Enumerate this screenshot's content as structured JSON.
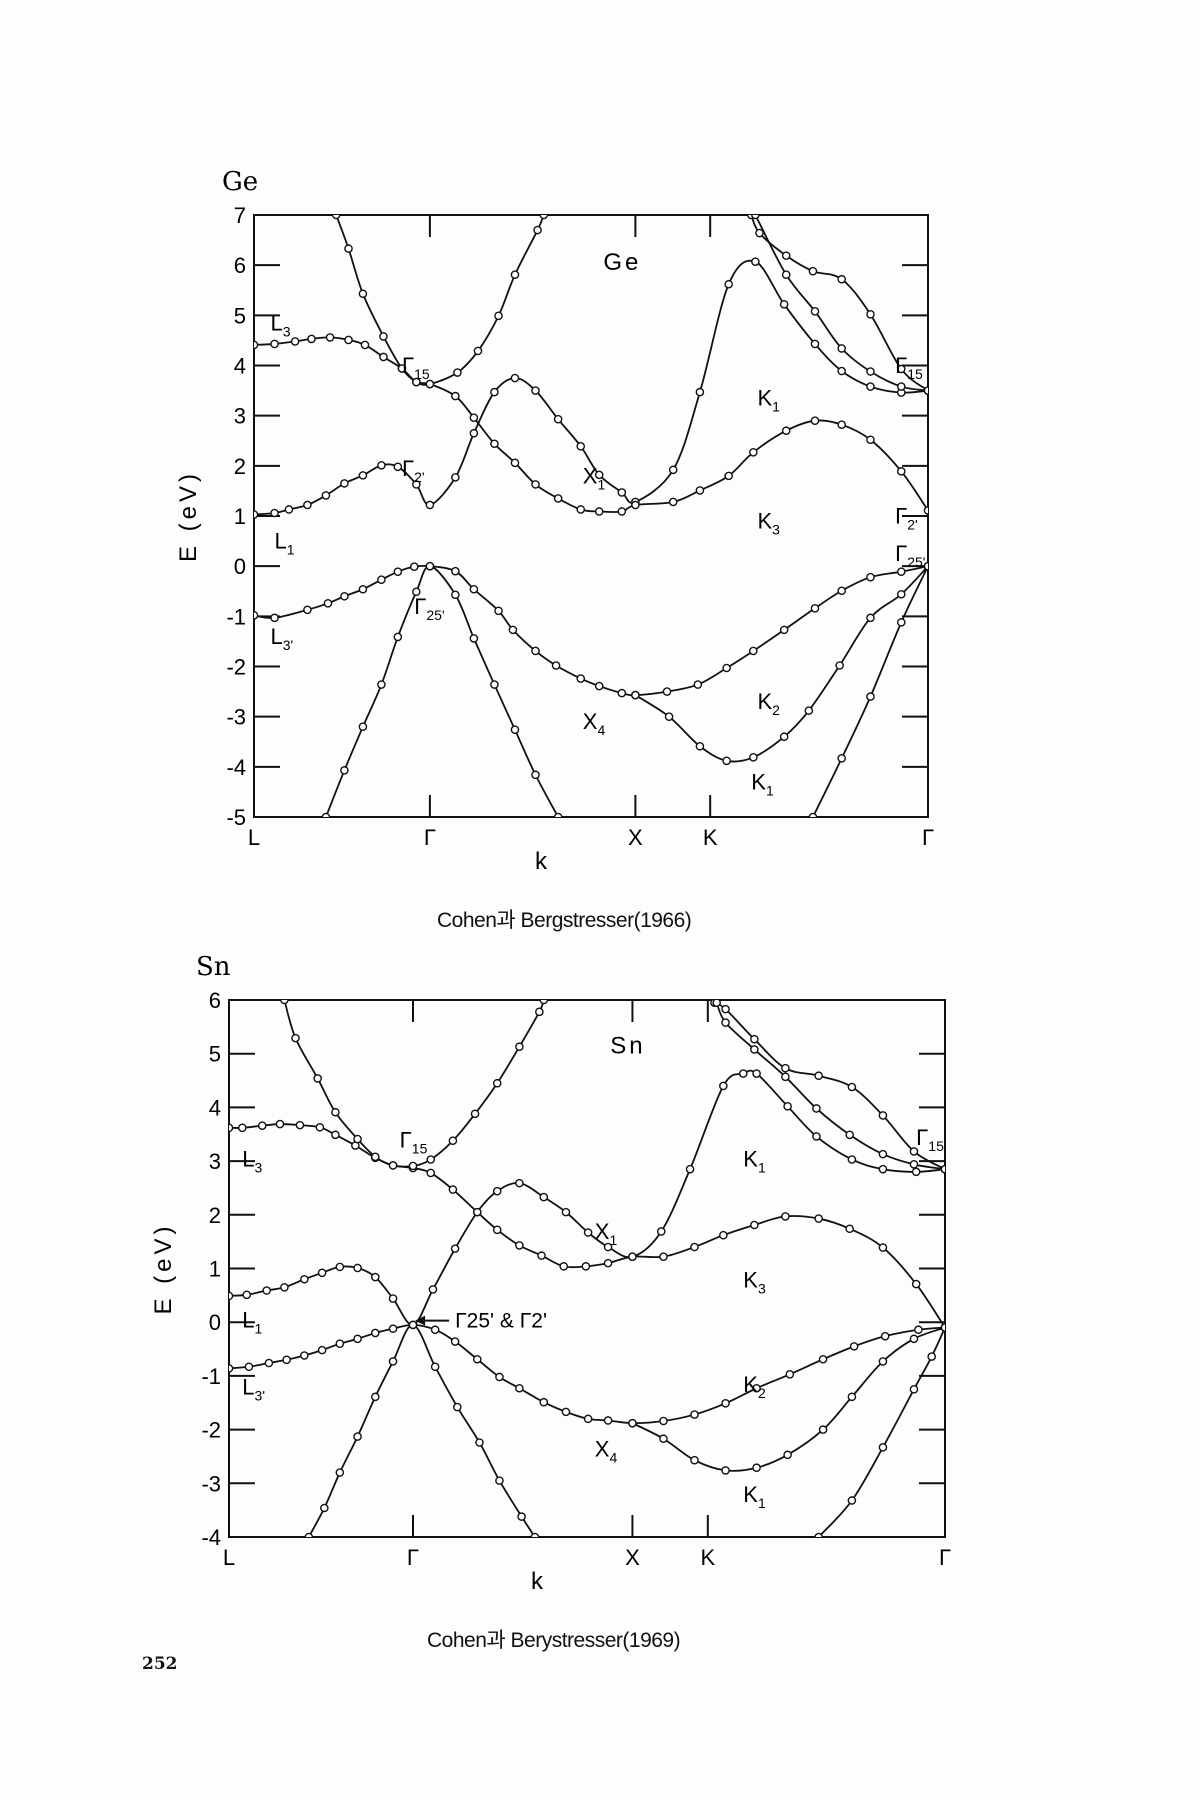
{
  "page_number": "252",
  "chart_data": [
    {
      "type": "line",
      "corner_label": "Ge",
      "inner_title": "Ge",
      "ylabel": "E (eV)",
      "xlabel": "k",
      "ylim": [
        -5,
        7
      ],
      "yticks": [
        -5,
        -4,
        -3,
        -2,
        -1,
        0,
        1,
        2,
        3,
        4,
        5,
        6,
        7
      ],
      "xlim": [
        0,
        3.28
      ],
      "xticks": [
        {
          "k": 0,
          "label": "L"
        },
        {
          "k": 0.856,
          "label": "Γ"
        },
        {
          "k": 1.856,
          "label": "X"
        },
        {
          "k": 2.22,
          "label": "K"
        },
        {
          "k": 3.28,
          "label": "Γ"
        }
      ],
      "caption": "Cohen과 Bergstresser(1966)",
      "annotations": [
        {
          "k": 0.08,
          "E": 4.7,
          "text": "L",
          "sub": "3"
        },
        {
          "k": 0.1,
          "E": 0.35,
          "text": "L",
          "sub": "1"
        },
        {
          "k": 0.08,
          "E": -1.55,
          "text": "L",
          "sub": "3'"
        },
        {
          "k": 0.72,
          "E": 3.85,
          "text": "Γ",
          "sub": "15"
        },
        {
          "k": 0.72,
          "E": 1.8,
          "text": "Γ",
          "sub": "2'"
        },
        {
          "k": 0.78,
          "E": -0.95,
          "text": "Γ",
          "sub": "25'"
        },
        {
          "k": 1.6,
          "E": 1.65,
          "text": "X",
          "sub": "1"
        },
        {
          "k": 1.6,
          "E": -3.25,
          "text": "X",
          "sub": "4"
        },
        {
          "k": 2.45,
          "E": 3.2,
          "text": "K",
          "sub": "1"
        },
        {
          "k": 2.45,
          "E": 0.75,
          "text": "K",
          "sub": "3"
        },
        {
          "k": 2.45,
          "E": -2.85,
          "text": "K",
          "sub": "2"
        },
        {
          "k": 2.42,
          "E": -4.45,
          "text": "K",
          "sub": "1"
        },
        {
          "k": 3.12,
          "E": 3.85,
          "text": "Γ",
          "sub": "15"
        },
        {
          "k": 3.12,
          "E": 0.85,
          "text": "Γ",
          "sub": "2'"
        },
        {
          "k": 3.12,
          "E": 0.1,
          "text": "Γ",
          "sub": "25'"
        }
      ],
      "series": [
        {
          "name": "valence-1",
          "k": [
            0,
            0.1,
            0.26,
            0.36,
            0.44,
            0.53,
            0.62,
            0.7,
            0.78,
            0.856,
            0.98,
            1.07,
            1.19,
            1.26,
            1.37,
            1.47,
            1.59,
            1.68,
            1.79,
            1.856,
            2.01,
            2.16,
            2.3,
            2.43,
            2.58,
            2.73,
            2.86,
            3.0,
            3.15,
            3.28
          ],
          "E": [
            -0.98,
            -1.03,
            -0.87,
            -0.74,
            -0.6,
            -0.46,
            -0.27,
            -0.11,
            -0.01,
            0,
            -0.1,
            -0.46,
            -0.89,
            -1.27,
            -1.69,
            -1.98,
            -2.24,
            -2.39,
            -2.53,
            -2.57,
            -2.5,
            -2.36,
            -2.03,
            -1.69,
            -1.27,
            -0.84,
            -0.49,
            -0.22,
            -0.11,
            0
          ]
        },
        {
          "name": "valence-2",
          "k": [
            0.35,
            0.44,
            0.53,
            0.62,
            0.7,
            0.79,
            0.856,
            0.98,
            1.07,
            1.17,
            1.27,
            1.37,
            1.48
          ],
          "E": [
            -5,
            -4.07,
            -3.2,
            -2.36,
            -1.41,
            -0.51,
            0,
            -0.57,
            -1.44,
            -2.36,
            -3.26,
            -4.16,
            -5
          ]
        },
        {
          "name": "valence-3",
          "k": [
            1.856,
            2.02,
            2.17,
            2.3,
            2.43,
            2.58,
            2.7,
            2.85,
            3.0,
            3.15,
            3.28
          ],
          "E": [
            -2.57,
            -3.0,
            -3.59,
            -3.88,
            -3.81,
            -3.4,
            -2.88,
            -1.98,
            -1.03,
            -0.56,
            0
          ]
        },
        {
          "name": "valence-4",
          "k": [
            2.72,
            2.86,
            3.0,
            3.15,
            3.28
          ],
          "E": [
            -5,
            -3.83,
            -2.6,
            -1.12,
            0
          ]
        },
        {
          "name": "conduction-1",
          "k": [
            0,
            0.1,
            0.17,
            0.26,
            0.35,
            0.44,
            0.53,
            0.62,
            0.7,
            0.79,
            0.856,
            0.98,
            1.07,
            1.17,
            1.27,
            1.37,
            1.48,
            1.59,
            1.68,
            1.79,
            1.856,
            2.04,
            2.17,
            2.31,
            2.44,
            2.58,
            2.73,
            2.86,
            3.0,
            3.15,
            3.28
          ],
          "E": [
            1.03,
            1.06,
            1.13,
            1.22,
            1.41,
            1.65,
            1.81,
            2.01,
            1.98,
            1.63,
            1.22,
            1.77,
            2.65,
            3.47,
            3.75,
            3.5,
            2.93,
            2.39,
            1.82,
            1.47,
            1.28,
            1.92,
            3.47,
            5.62,
            6.07,
            5.22,
            4.43,
            3.89,
            3.58,
            3.46,
            3.5
          ]
        },
        {
          "name": "conduction-2",
          "k": [
            0,
            0.1,
            0.2,
            0.28,
            0.37,
            0.46,
            0.54,
            0.63,
            0.72,
            0.79,
            0.856,
            0.98,
            1.07,
            1.17,
            1.27,
            1.37,
            1.48,
            1.59,
            1.68,
            1.79,
            1.856,
            2.04,
            2.17,
            2.31,
            2.43,
            2.59,
            2.73,
            2.86,
            3.0,
            3.15,
            3.28
          ],
          "E": [
            4.41,
            4.43,
            4.48,
            4.53,
            4.56,
            4.51,
            4.41,
            4.17,
            3.94,
            3.67,
            3.63,
            3.39,
            2.96,
            2.44,
            2.06,
            1.63,
            1.35,
            1.13,
            1.09,
            1.09,
            1.22,
            1.28,
            1.51,
            1.8,
            2.27,
            2.7,
            2.9,
            2.82,
            2.52,
            1.89,
            1.11
          ]
        },
        {
          "name": "conduction-3",
          "k": [
            0.4,
            0.46,
            0.53,
            0.63,
            0.72,
            0.79,
            0.856,
            0.99,
            1.09,
            1.19,
            1.27,
            1.38,
            1.41
          ],
          "E": [
            7,
            6.33,
            5.43,
            4.58,
            3.94,
            3.67,
            3.63,
            3.86,
            4.29,
            4.99,
            5.81,
            6.7,
            7
          ]
        },
        {
          "name": "conduction-4",
          "k": [
            2.42,
            2.46,
            2.59,
            2.72,
            2.86,
            3.0,
            3.15,
            3.28
          ],
          "E": [
            7,
            6.64,
            6.19,
            5.88,
            5.72,
            5.02,
            3.93,
            3.5
          ]
        },
        {
          "name": "conduction-5",
          "k": [
            2.44,
            2.59,
            2.73,
            2.86,
            3.0,
            3.15,
            3.28
          ],
          "E": [
            7,
            5.81,
            5.08,
            4.34,
            3.88,
            3.58,
            3.5
          ]
        }
      ]
    },
    {
      "type": "line",
      "corner_label": "Sn",
      "inner_title": "Sn",
      "ylabel": "E (eV)",
      "xlabel": "k",
      "ylim": [
        -4,
        6
      ],
      "yticks": [
        -4,
        -3,
        -2,
        -1,
        0,
        1,
        2,
        3,
        4,
        5,
        6
      ],
      "xlim": [
        0,
        3.23
      ],
      "xticks": [
        {
          "k": 0,
          "label": "L"
        },
        {
          "k": 0.83,
          "label": "Γ"
        },
        {
          "k": 1.82,
          "label": "X"
        },
        {
          "k": 2.16,
          "label": "K"
        },
        {
          "k": 3.23,
          "label": "Γ"
        }
      ],
      "caption": "Cohen과 Berystresser(1969)",
      "arrow_label": {
        "k": 1.02,
        "E": -0.1,
        "text": "Γ25' & Γ2'"
      },
      "annotations": [
        {
          "k": 0.06,
          "E": 2.9,
          "text": "L",
          "sub": "3"
        },
        {
          "k": 0.06,
          "E": -0.1,
          "text": "L",
          "sub": "1"
        },
        {
          "k": 0.06,
          "E": -1.35,
          "text": "L",
          "sub": "3'"
        },
        {
          "k": 0.77,
          "E": 3.25,
          "text": "Γ",
          "sub": "15"
        },
        {
          "k": 1.65,
          "E": 1.55,
          "text": "X",
          "sub": "1"
        },
        {
          "k": 1.65,
          "E": -2.5,
          "text": "X",
          "sub": "4"
        },
        {
          "k": 2.32,
          "E": 2.9,
          "text": "K",
          "sub": "1"
        },
        {
          "k": 2.32,
          "E": 0.65,
          "text": "K",
          "sub": "3"
        },
        {
          "k": 2.32,
          "E": -1.3,
          "text": "K",
          "sub": "2"
        },
        {
          "k": 2.32,
          "E": -3.35,
          "text": "K",
          "sub": "1"
        },
        {
          "k": 3.1,
          "E": 3.3,
          "text": "Γ",
          "sub": "15"
        }
      ],
      "series": [
        {
          "name": "valence-1",
          "k": [
            0,
            0.09,
            0.18,
            0.26,
            0.34,
            0.42,
            0.5,
            0.58,
            0.66,
            0.74,
            0.83,
            0.93,
            1.02,
            1.12,
            1.22,
            1.31,
            1.42,
            1.52,
            1.62,
            1.71,
            1.82,
            1.96,
            2.1,
            2.24,
            2.38,
            2.53,
            2.68,
            2.82,
            2.96,
            3.11,
            3.23
          ],
          "E": [
            -0.86,
            -0.83,
            -0.76,
            -0.7,
            -0.62,
            -0.52,
            -0.4,
            -0.31,
            -0.2,
            -0.12,
            -0.05,
            -0.14,
            -0.36,
            -0.69,
            -1.02,
            -1.23,
            -1.49,
            -1.67,
            -1.8,
            -1.83,
            -1.88,
            -1.84,
            -1.72,
            -1.51,
            -1.23,
            -0.97,
            -0.69,
            -0.45,
            -0.26,
            -0.14,
            -0.1
          ]
        },
        {
          "name": "valence-2",
          "k": [
            0.36,
            0.43,
            0.5,
            0.58,
            0.66,
            0.74,
            0.83,
            0.93,
            1.03,
            1.13,
            1.22,
            1.32,
            1.38
          ],
          "E": [
            -4,
            -3.46,
            -2.8,
            -2.13,
            -1.39,
            -0.73,
            -0.05,
            -0.83,
            -1.58,
            -2.24,
            -2.95,
            -3.62,
            -4
          ]
        },
        {
          "name": "valence-3",
          "k": [
            1.82,
            1.96,
            2.1,
            2.24,
            2.38,
            2.52,
            2.68,
            2.81,
            2.95,
            3.09,
            3.23
          ],
          "E": [
            -1.88,
            -2.17,
            -2.57,
            -2.76,
            -2.71,
            -2.47,
            -2.0,
            -1.39,
            -0.73,
            -0.31,
            -0.1
          ]
        },
        {
          "name": "valence-4",
          "k": [
            2.66,
            2.81,
            2.95,
            3.09,
            3.17,
            3.23
          ],
          "E": [
            -4,
            -3.32,
            -2.33,
            -1.25,
            -0.64,
            -0.1
          ]
        },
        {
          "name": "conduction-1",
          "k": [
            0,
            0.08,
            0.17,
            0.25,
            0.34,
            0.42,
            0.5,
            0.58,
            0.66,
            0.74,
            0.83,
            0.92,
            1.02,
            1.12,
            1.21,
            1.31,
            1.42,
            1.52,
            1.62,
            1.71,
            1.82,
            1.95,
            2.08,
            2.23,
            2.32,
            2.38,
            2.52,
            2.65,
            2.81,
            2.95,
            3.1,
            3.23
          ],
          "E": [
            0.49,
            0.51,
            0.59,
            0.65,
            0.8,
            0.92,
            1.03,
            1.01,
            0.84,
            0.44,
            -0.05,
            0.61,
            1.37,
            2.05,
            2.44,
            2.59,
            2.33,
            2.05,
            1.67,
            1.4,
            1.22,
            1.69,
            2.85,
            4.4,
            4.63,
            4.63,
            4.02,
            3.46,
            3.03,
            2.85,
            2.8,
            2.85
          ]
        },
        {
          "name": "conduction-2",
          "k": [
            0,
            0.06,
            0.15,
            0.23,
            0.32,
            0.41,
            0.48,
            0.57,
            0.66,
            0.74,
            0.83,
            0.91,
            1.01,
            1.12,
            1.21,
            1.31,
            1.41,
            1.51,
            1.61,
            1.71,
            1.82,
            1.96,
            2.1,
            2.23,
            2.37,
            2.51,
            2.66,
            2.8,
            2.95,
            3.1,
            3.23
          ],
          "E": [
            3.62,
            3.62,
            3.66,
            3.69,
            3.67,
            3.63,
            3.49,
            3.29,
            3.06,
            2.92,
            2.87,
            2.78,
            2.47,
            2.05,
            1.72,
            1.43,
            1.24,
            1.04,
            1.04,
            1.1,
            1.22,
            1.22,
            1.4,
            1.62,
            1.81,
            1.97,
            1.93,
            1.74,
            1.39,
            0.71,
            -0.1
          ]
        },
        {
          "name": "conduction-3",
          "k": [
            0.25,
            0.3,
            0.4,
            0.48,
            0.58,
            0.66,
            0.74,
            0.83,
            0.91,
            1.01,
            1.11,
            1.21,
            1.31,
            1.4,
            1.42
          ],
          "E": [
            6,
            5.29,
            4.54,
            3.91,
            3.41,
            3.08,
            2.92,
            2.91,
            3.03,
            3.38,
            3.88,
            4.45,
            5.13,
            5.78,
            6
          ]
        },
        {
          "name": "conduction-4",
          "k": [
            2.19,
            2.24,
            2.37,
            2.51,
            2.66,
            2.81,
            2.95,
            3.09,
            3.23
          ],
          "E": [
            5.95,
            5.83,
            5.27,
            4.73,
            4.59,
            4.38,
            3.85,
            3.18,
            2.85
          ]
        },
        {
          "name": "conduction-5",
          "k": [
            2.2,
            2.24,
            2.37,
            2.51,
            2.65,
            2.8,
            2.95,
            3.09,
            3.23
          ],
          "E": [
            5.95,
            5.58,
            5.08,
            4.57,
            3.98,
            3.49,
            3.13,
            2.94,
            2.85
          ]
        }
      ]
    }
  ]
}
